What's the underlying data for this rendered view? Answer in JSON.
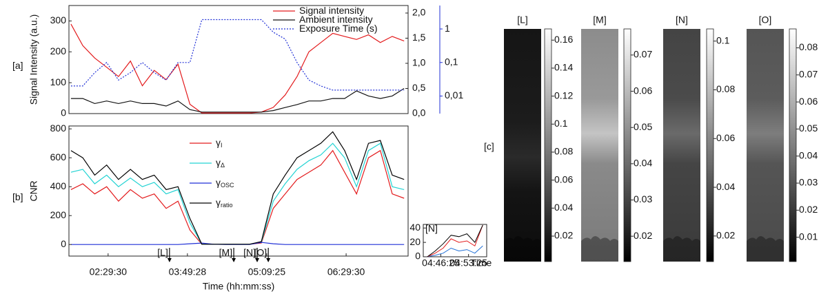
{
  "chart_data": [
    {
      "type": "line",
      "panel_label": "[a]",
      "ylabel": "Signal Intensity (a.u.)",
      "xlim": [
        110,
        452
      ],
      "x": [
        112,
        124,
        136,
        148,
        160,
        172,
        184,
        196,
        208,
        220,
        232,
        244,
        256,
        268,
        280,
        292,
        304,
        316,
        328,
        340,
        352,
        364,
        376,
        388,
        400,
        412,
        424,
        436,
        448
      ],
      "ylim": [
        0,
        350
      ],
      "yticks": [
        0,
        100,
        200,
        300
      ],
      "y2lim": [
        0,
        2.15
      ],
      "y2ticks": [
        {
          "value": 0,
          "label": "0,0"
        },
        {
          "value": 0.5,
          "label": "0,5"
        },
        {
          "value": 1,
          "label": "1,0"
        },
        {
          "value": 1.5,
          "label": "1,5"
        },
        {
          "value": 2,
          "label": "2,0"
        }
      ],
      "y3lim": [
        0.003,
        5
      ],
      "y3log": true,
      "y3ticks": [
        {
          "value": 0.01,
          "label": "0,01"
        },
        {
          "value": 0.1,
          "label": "0,1"
        },
        {
          "value": 1,
          "label": "1"
        }
      ],
      "legend": "top-right",
      "series": [
        {
          "name": "Signal intensity",
          "color": "#e31a1c",
          "axis": "y",
          "values": [
            290,
            220,
            180,
            150,
            120,
            170,
            90,
            140,
            110,
            160,
            30,
            2,
            2,
            2,
            2,
            2,
            5,
            20,
            60,
            120,
            200,
            230,
            260,
            250,
            240,
            255,
            230,
            250,
            235
          ]
        },
        {
          "name": "Ambient intensity",
          "color": "#111111",
          "axis": "y2",
          "values": [
            0.3,
            0.3,
            0.2,
            0.25,
            0.2,
            0.25,
            0.2,
            0.2,
            0.15,
            0.25,
            0.08,
            0.03,
            0.03,
            0.03,
            0.03,
            0.03,
            0.03,
            0.06,
            0.12,
            0.18,
            0.25,
            0.25,
            0.3,
            0.3,
            0.45,
            0.35,
            0.3,
            0.35,
            0.5
          ]
        },
        {
          "name": "Exposure Time (s)",
          "color": "#1f2fd6",
          "axis": "y3",
          "dash": "dotted",
          "values": [
            0.02,
            0.02,
            0.05,
            0.1,
            0.03,
            0.05,
            0.1,
            0.05,
            0.03,
            0.1,
            0.1,
            1.9,
            1.9,
            1.9,
            1.9,
            1.9,
            1.9,
            0.8,
            0.5,
            0.1,
            0.03,
            0.02,
            0.015,
            0.015,
            0.015,
            0.015,
            0.015,
            0.015,
            0.015
          ]
        }
      ]
    },
    {
      "type": "line",
      "panel_label": "[b]",
      "ylabel": "CNR",
      "xlabel": "Time (hh:mm:ss)",
      "xlim": [
        110,
        452
      ],
      "xticks": [
        {
          "value": 149.5,
          "label": "02:29:30"
        },
        {
          "value": 229.47,
          "label": "03:49:28"
        },
        {
          "value": 309.42,
          "label": "05:09:25"
        },
        {
          "value": 389.5,
          "label": "06:29:30"
        }
      ],
      "x": [
        112,
        124,
        136,
        148,
        160,
        172,
        184,
        196,
        208,
        220,
        232,
        244,
        256,
        268,
        280,
        292,
        304,
        316,
        328,
        340,
        352,
        364,
        376,
        388,
        400,
        412,
        424,
        436,
        448
      ],
      "ylim": [
        -80,
        820
      ],
      "yticks": [
        0,
        200,
        400,
        600,
        800
      ],
      "legend": "center-left",
      "series": [
        {
          "name": "γ",
          "subscript": "I",
          "color": "#e31a1c",
          "values": [
            380,
            420,
            350,
            400,
            300,
            380,
            320,
            350,
            250,
            300,
            100,
            2,
            2,
            2,
            2,
            2,
            10,
            250,
            350,
            450,
            500,
            550,
            650,
            500,
            350,
            600,
            650,
            350,
            320
          ]
        },
        {
          "name": "γ",
          "subscript": "Δ",
          "color": "#22d3d3",
          "values": [
            500,
            520,
            420,
            480,
            400,
            460,
            400,
            430,
            350,
            380,
            150,
            2,
            2,
            2,
            2,
            2,
            15,
            300,
            420,
            520,
            580,
            620,
            700,
            600,
            400,
            650,
            700,
            400,
            380
          ]
        },
        {
          "name": "γ",
          "subscript": "OSC",
          "color": "#1f2fd6",
          "values": [
            0,
            0,
            0,
            0,
            0,
            0,
            0,
            0,
            0,
            0,
            5,
            10,
            2,
            0,
            0,
            0,
            15,
            5,
            0,
            0,
            0,
            0,
            0,
            0,
            0,
            0,
            0,
            0,
            0
          ]
        },
        {
          "name": "γ",
          "subscript": "ratio",
          "color": "#000000",
          "values": [
            650,
            600,
            480,
            550,
            450,
            520,
            450,
            480,
            380,
            400,
            180,
            2,
            2,
            2,
            2,
            2,
            20,
            350,
            480,
            600,
            650,
            700,
            780,
            650,
            450,
            700,
            720,
            480,
            450
          ]
        }
      ],
      "markers": [
        {
          "label": "[L]",
          "x": 211.4
        },
        {
          "label": "[M]",
          "x": 276.2
        },
        {
          "label": "[N]",
          "x": 299.8
        },
        {
          "label": "[O]",
          "x": 311
        }
      ]
    },
    {
      "type": "line",
      "title": "[N]",
      "xlabel": "Time",
      "xlim": [
        282,
        298
      ],
      "xticks": [
        {
          "value": 286.42,
          "label": "04:46:25"
        },
        {
          "value": 293.42,
          "label": "04:53:25"
        }
      ],
      "x": [
        283,
        285,
        287,
        289,
        291,
        293,
        295,
        297
      ],
      "ylim": [
        0,
        45
      ],
      "yticks": [
        0,
        20,
        40
      ],
      "series": [
        {
          "color": "#1f6fd6",
          "values": [
            0,
            2,
            5,
            12,
            8,
            10,
            5,
            15
          ]
        },
        {
          "color": "#e31a1c",
          "values": [
            0,
            5,
            12,
            25,
            20,
            22,
            15,
            44
          ]
        },
        {
          "color": "#000000",
          "values": [
            0,
            8,
            18,
            30,
            28,
            32,
            20,
            44
          ]
        }
      ]
    },
    {
      "type": "image",
      "panel_label": "[c]",
      "panels": [
        {
          "title": "[L]",
          "clim": [
            0.0018,
            0.168
          ],
          "ticks": [
            0.02,
            0.04,
            0.06,
            0.08,
            0.1,
            0.12,
            0.14,
            0.16
          ]
        },
        {
          "title": "[M]",
          "clim": [
            0.013,
            0.0772
          ],
          "ticks": [
            0.02,
            0.03,
            0.04,
            0.05,
            0.06,
            0.07
          ]
        },
        {
          "title": "[N]",
          "clim": [
            0.0095,
            0.105
          ],
          "ticks": [
            0.02,
            0.04,
            0.06,
            0.08,
            0.1
          ]
        },
        {
          "title": "[O]",
          "clim": [
            0.001,
            0.087
          ],
          "ticks": [
            0.01,
            0.02,
            0.03,
            0.04,
            0.05,
            0.06,
            0.07,
            0.08
          ]
        }
      ]
    }
  ]
}
